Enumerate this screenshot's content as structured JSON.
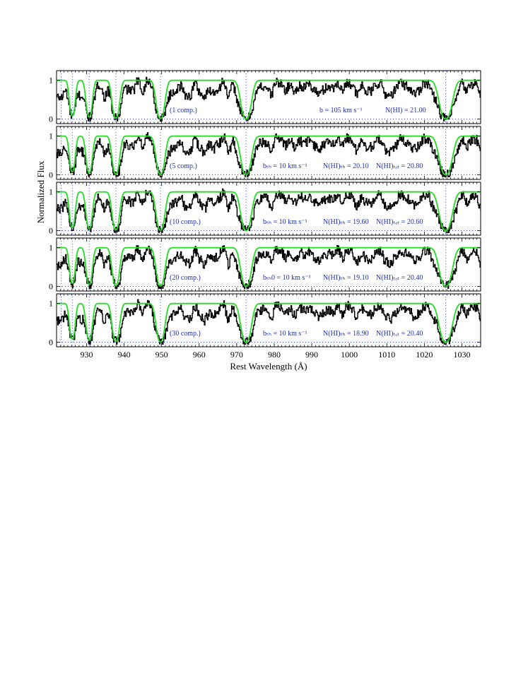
{
  "colors": {
    "data": "#000000",
    "model": "#22dd22",
    "markers": "#1f2fb5",
    "annotation": "#1f2fb5"
  },
  "chart_data": {
    "type": "line",
    "xlabel": "Rest Wavelength (Å)",
    "ylabel": "Normalized Flux",
    "xlim": [
      922,
      1035
    ],
    "ylim": [
      -0.12,
      1.25
    ],
    "x_ticks": [
      "930",
      "940",
      "950",
      "960",
      "970",
      "980",
      "990",
      "1000",
      "1010",
      "1020",
      "1030"
    ],
    "x_tick_values": [
      930,
      940,
      950,
      960,
      970,
      980,
      990,
      1000,
      1010,
      1020,
      1030
    ],
    "y_ticks": [
      "0",
      "1"
    ],
    "y_tick_values": [
      0,
      1
    ],
    "line_markers_x": [
      923.2,
      926.2,
      930.7,
      937.8,
      949.7,
      972.5,
      1025.7
    ],
    "lyman_lines": [
      {
        "center": 926.2,
        "width": 1.0,
        "depth": 0.92
      },
      {
        "center": 930.7,
        "width": 1.1,
        "depth": 0.95
      },
      {
        "center": 937.8,
        "width": 1.3,
        "depth": 0.98
      },
      {
        "center": 949.7,
        "width": 1.5,
        "depth": 0.99
      },
      {
        "center": 972.5,
        "width": 1.8,
        "depth": 1.0
      },
      {
        "center": 1025.7,
        "width": 2.2,
        "depth": 1.0
      }
    ],
    "panels": [
      {
        "label": "(1 comp.)",
        "annotations": [
          "b = 105 km s⁻¹",
          "N(HI) = 21.00"
        ]
      },
      {
        "label": "(5 comp.)",
        "annotations": [
          "bₜₕ = 10 km s⁻¹",
          "N(HI)ₜₕ = 20.10",
          "N(HI)ₜₒₜ = 20.80"
        ]
      },
      {
        "label": "(10 comp.)",
        "annotations": [
          "bₜₕ = 10 km s⁻¹",
          "N(HI)ₜₕ = 19.60",
          "N(HI)ₜₒₜ = 20.60"
        ]
      },
      {
        "label": "(20 comp.)",
        "annotations": [
          "bₜₕ0 = 10 km s⁻¹",
          "N(HI)ₜₕ = 19.10",
          "N(HI)ₜₒₜ = 20.40"
        ]
      },
      {
        "label": "(30 comp.)",
        "annotations": [
          "bₜₕ = 10 km s⁻¹",
          "N(HI)ₜₕ = 18.90",
          "N(HI)ₜₒₜ = 20.40"
        ]
      }
    ]
  }
}
